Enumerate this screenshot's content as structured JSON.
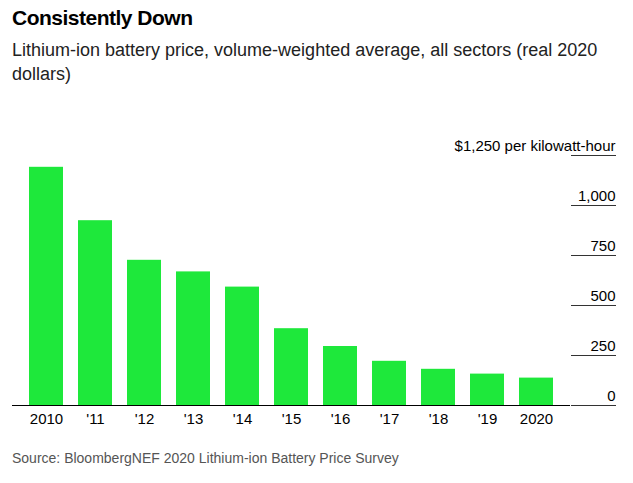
{
  "chart_data": {
    "type": "bar",
    "title": "Consistently Down",
    "subtitle": "Lithium-ion battery price, volume-weighted average, all sectors (real 2020 dollars)",
    "caption": "Source: BloombergNEF 2020 Lithium-ion Battery Price Survey",
    "categories": [
      "2010",
      "'11",
      "'12",
      "'13",
      "'14",
      "'15",
      "'16",
      "'17",
      "'18",
      "'19",
      "2020"
    ],
    "values": [
      1191,
      924,
      726,
      668,
      592,
      384,
      295,
      221,
      181,
      157,
      137
    ],
    "color": "#1ee83b",
    "ylim": [
      0,
      1250
    ],
    "yticks": [
      0,
      250,
      500,
      750,
      {
        "value": 1000,
        "label": "1,000"
      },
      {
        "value": 1250,
        "label": "$1,250 per kilowatt-hour"
      }
    ],
    "grid": false
  }
}
